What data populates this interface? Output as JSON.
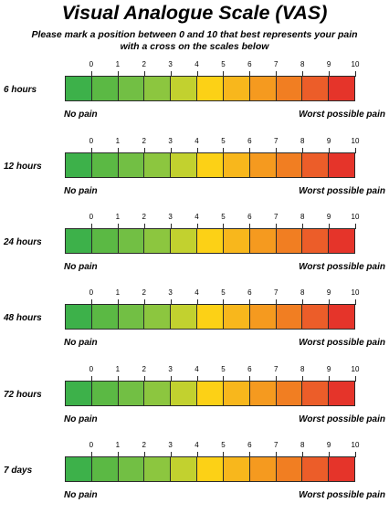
{
  "title": "Visual Analogue Scale (VAS)",
  "instructions": {
    "line1": "Please mark a position between 0 and 10 that best  represents your pain",
    "line2": "with a cross on the scales below"
  },
  "tick_labels": [
    "0",
    "1",
    "2",
    "3",
    "4",
    "5",
    "6",
    "7",
    "8",
    "9",
    "10"
  ],
  "segment_colors": [
    "#3db14a",
    "#5bb944",
    "#72bf44",
    "#8cc63f",
    "#c2d12f",
    "#fcd116",
    "#f8b71c",
    "#f59a1f",
    "#f17e22",
    "#ec5d29",
    "#e5342a"
  ],
  "anchors": {
    "left": "No pain",
    "right": "Worst possible pain"
  },
  "scales": [
    {
      "label": "6 hours"
    },
    {
      "label": "12 hours"
    },
    {
      "label": "24 hours"
    },
    {
      "label": "48 hours"
    },
    {
      "label": "72 hours"
    },
    {
      "label": "7 days"
    }
  ]
}
